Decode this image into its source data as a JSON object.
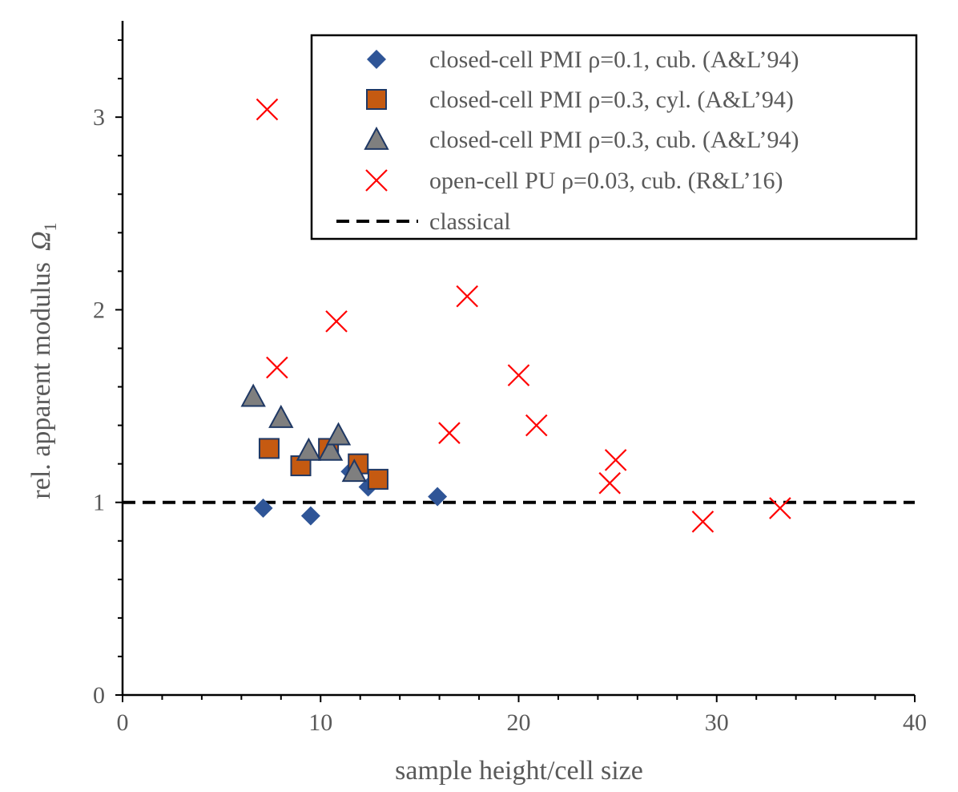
{
  "chart_data": {
    "type": "scatter",
    "xlabel": "sample height/cell size",
    "ylabel": "rel. apparent modulus",
    "ylabel_symbol": "Ω",
    "ylabel_subscript": "1",
    "xlim": [
      0,
      40
    ],
    "ylim": [
      0,
      3.5
    ],
    "x_ticks": [
      "0",
      "10",
      "20",
      "30",
      "40"
    ],
    "y_ticks": [
      "0",
      "1",
      "2",
      "3"
    ],
    "grid": false,
    "legend_position": "top-right",
    "colors": {
      "diamond": "#2F5597",
      "square": "#C55A11",
      "triangle": "#7F7F7F",
      "cross": "#FF0000",
      "classical": "#000000"
    },
    "series": [
      {
        "name": "closed-cell PMI ρ=0.1, cub. (A&L’94)",
        "marker": "diamond",
        "points": [
          [
            7.1,
            0.97
          ],
          [
            9.5,
            0.93
          ],
          [
            11.5,
            1.16
          ],
          [
            12.4,
            1.08
          ],
          [
            15.9,
            1.03
          ]
        ]
      },
      {
        "name": "closed-cell PMI ρ=0.3, cyl. (A&L’94)",
        "marker": "square",
        "points": [
          [
            7.4,
            1.28
          ],
          [
            9.0,
            1.19
          ],
          [
            10.4,
            1.28
          ],
          [
            11.9,
            1.2
          ],
          [
            12.9,
            1.12
          ]
        ]
      },
      {
        "name": "closed-cell PMI ρ=0.3, cub. (A&L’94)",
        "marker": "triangle",
        "points": [
          [
            6.6,
            1.55
          ],
          [
            8.0,
            1.44
          ],
          [
            9.4,
            1.27
          ],
          [
            10.5,
            1.27
          ],
          [
            10.9,
            1.35
          ],
          [
            11.7,
            1.16
          ]
        ]
      },
      {
        "name": "open-cell PU ρ=0.03, cub. (R&L’16)",
        "marker": "cross",
        "points": [
          [
            7.3,
            3.04
          ],
          [
            7.8,
            1.7
          ],
          [
            10.8,
            1.94
          ],
          [
            16.5,
            1.36
          ],
          [
            17.4,
            2.07
          ],
          [
            20.0,
            1.66
          ],
          [
            20.9,
            1.4
          ],
          [
            24.6,
            1.1
          ],
          [
            24.9,
            1.22
          ],
          [
            29.3,
            0.9
          ],
          [
            33.2,
            0.97
          ]
        ]
      },
      {
        "name": "classical",
        "marker": "dashed-line",
        "y": 1.0
      }
    ]
  }
}
